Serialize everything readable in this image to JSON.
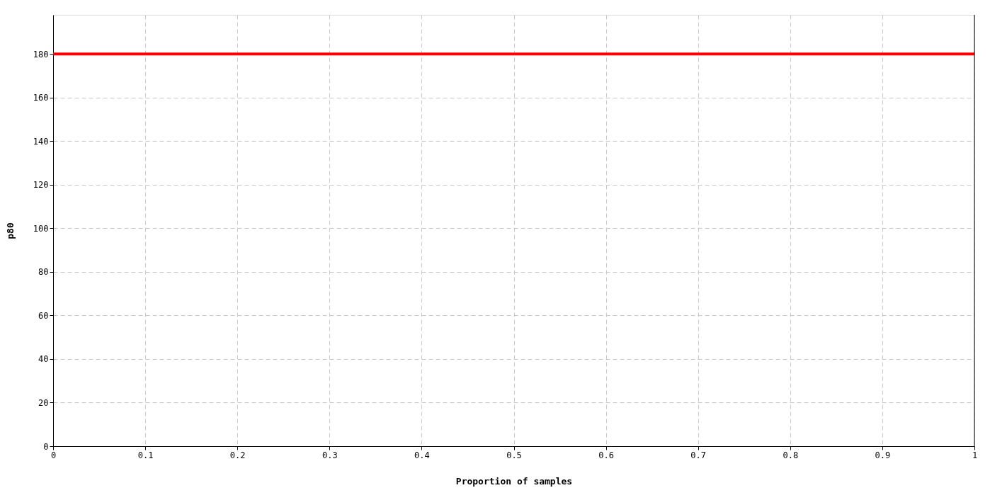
{
  "chart_data": {
    "type": "line",
    "xlabel": "Proportion of samples",
    "ylabel": "p80",
    "x": [
      0,
      1
    ],
    "series": [
      {
        "color": "#ff0000",
        "values": [
          180,
          180
        ]
      }
    ],
    "xlim": [
      0,
      1
    ],
    "xticks": [
      0,
      0.1,
      0.2,
      0.3,
      0.4,
      0.5,
      0.6,
      0.7,
      0.8,
      0.9,
      1
    ],
    "ylim": [
      0,
      198
    ],
    "yticks": [
      0,
      20,
      40,
      60,
      80,
      100,
      120,
      140,
      160,
      180
    ],
    "grid": true,
    "marker": "none",
    "line_style": "solid"
  }
}
